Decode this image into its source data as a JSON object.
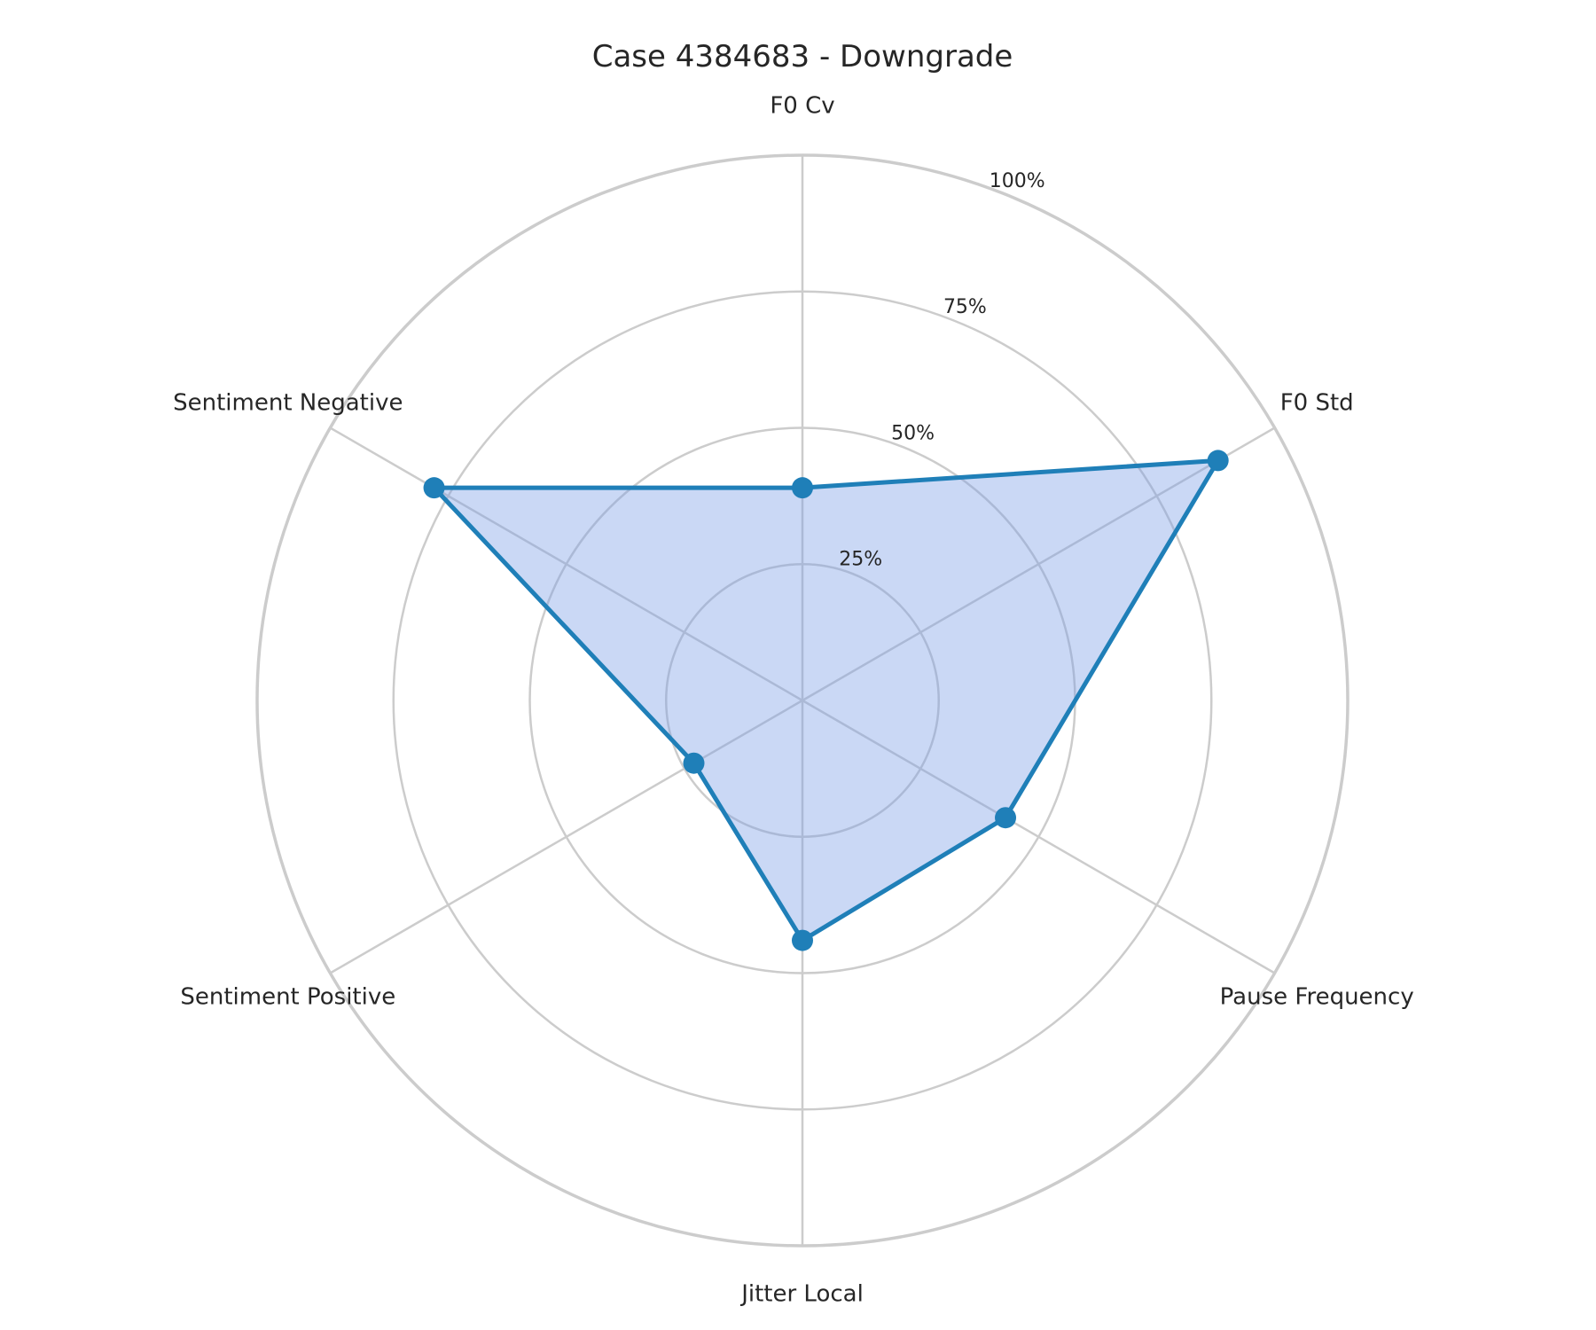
{
  "chart_data": {
    "type": "radar",
    "title": "Case 4384683 - Downgrade",
    "axes": [
      "F0 Cv",
      "F0 Std",
      "Pause Frequency",
      "Jitter Local",
      "Sentiment Positive",
      "Sentiment Negative"
    ],
    "values": [
      39,
      88,
      43,
      44,
      23,
      78
    ],
    "rlim": [
      0,
      100
    ],
    "ticks": [
      25,
      50,
      75,
      100
    ],
    "tick_labels": [
      "25%",
      "50%",
      "75%",
      "100%"
    ],
    "grid": true,
    "colors": {
      "line": "#1f7fb8",
      "fill": "#7b9ee6",
      "grid": "#cccccc"
    }
  }
}
